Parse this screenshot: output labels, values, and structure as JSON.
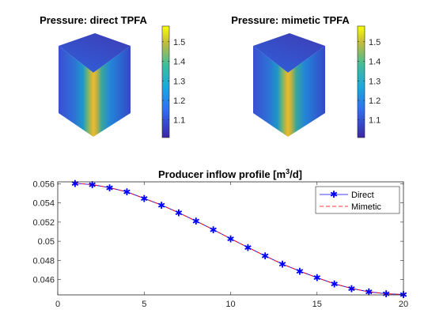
{
  "figure": {
    "left_title": "Pressure: direct TPFA",
    "right_title": "Pressure: mimetic TPFA",
    "plot_title_main": "Producer inflow profile [m",
    "plot_title_sup": "3",
    "plot_title_tail": "/d]"
  },
  "colorbar": {
    "ticks": [
      "1.5",
      "1.4",
      "1.3",
      "1.2",
      "1.1"
    ],
    "range": [
      1.01,
      1.58
    ]
  },
  "chart_data": [
    {
      "type": "line",
      "title": "Producer inflow profile [m^3/d]",
      "xlabel": "",
      "ylabel": "",
      "xlim": [
        0,
        20
      ],
      "ylim": [
        0.0444,
        0.0562
      ],
      "xticks": [
        "0",
        "5",
        "10",
        "15",
        "20"
      ],
      "yticks": [
        "0.046",
        "0.048",
        "0.05",
        "0.052",
        "0.054",
        "0.056"
      ],
      "grid": false,
      "legend": "top-right",
      "x": [
        1,
        2,
        3,
        4,
        5,
        6,
        7,
        8,
        9,
        10,
        11,
        12,
        13,
        14,
        15,
        16,
        17,
        18,
        19,
        20
      ],
      "series": [
        {
          "name": "Direct",
          "color": "#0000ff",
          "marker": "*",
          "values": [
            0.05605,
            0.05591,
            0.05559,
            0.05515,
            0.05447,
            0.05378,
            0.05297,
            0.05211,
            0.05121,
            0.05027,
            0.04936,
            0.04847,
            0.04762,
            0.04688,
            0.0462,
            0.04556,
            0.04508,
            0.04472,
            0.04452,
            0.04444
          ]
        },
        {
          "name": "Mimetic",
          "color": "#ff0000",
          "marker": "none",
          "dash": "dashed",
          "values": [
            0.05605,
            0.05591,
            0.05559,
            0.05515,
            0.05447,
            0.05378,
            0.05297,
            0.05211,
            0.05121,
            0.05027,
            0.04936,
            0.04847,
            0.04762,
            0.04688,
            0.0462,
            0.04556,
            0.04508,
            0.04472,
            0.04452,
            0.04444
          ]
        }
      ]
    }
  ]
}
